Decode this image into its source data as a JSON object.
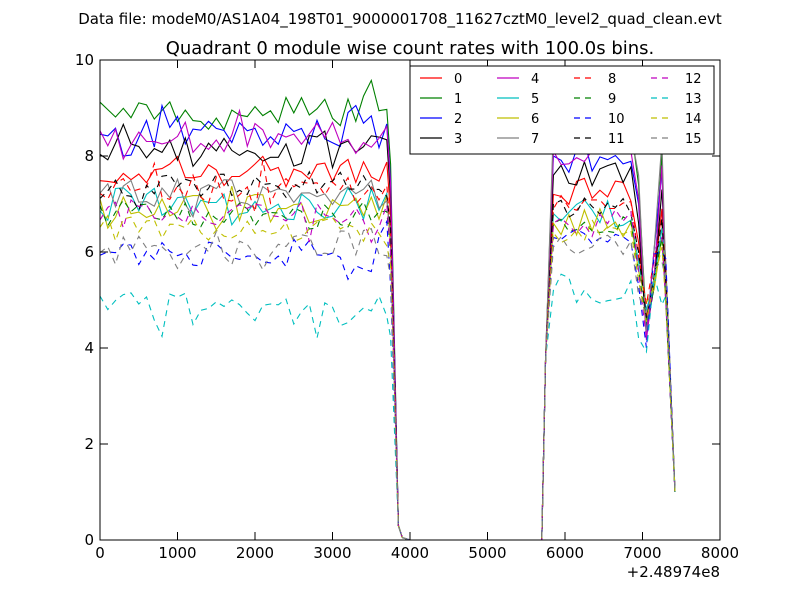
{
  "suptitle": "Data file: modeM0/AS1A04_198T01_9000001708_11627cztM0_level2_quad_clean.evt",
  "chart_data": {
    "type": "line",
    "title": "Quadrant 0 module wise count rates with 100.0s bins.",
    "xlabel": "",
    "ylabel": "",
    "x_offset_label": "+2.48974e8",
    "xlim": [
      0,
      8000
    ],
    "ylim": [
      0,
      10
    ],
    "xticks": [
      0,
      1000,
      2000,
      3000,
      4000,
      5000,
      6000,
      7000,
      8000
    ],
    "yticks": [
      0,
      2,
      4,
      6,
      8,
      10
    ],
    "legend_position": "top-right",
    "legend_columns": 4,
    "bin_size_s": 100,
    "segments": [
      {
        "start": 0,
        "end": 3900,
        "step": 100
      },
      {
        "start": 3900,
        "end": 5700,
        "step": 100,
        "zero": true
      },
      {
        "start": 5700,
        "end": 7420,
        "step": 100
      }
    ],
    "series": [
      {
        "name": "0",
        "color": "#ff0000",
        "dash": "solid",
        "base1": 7.7,
        "base2": 7.2,
        "amp": 0.35,
        "seed": 1
      },
      {
        "name": "1",
        "color": "#008000",
        "dash": "solid",
        "base1": 8.9,
        "base2": 8.4,
        "amp": 0.35,
        "seed": 2
      },
      {
        "name": "2",
        "color": "#0000ff",
        "dash": "solid",
        "base1": 8.5,
        "base2": 8.0,
        "amp": 0.35,
        "seed": 3
      },
      {
        "name": "3",
        "color": "#000000",
        "dash": "solid",
        "base1": 8.1,
        "base2": 7.6,
        "amp": 0.35,
        "seed": 4
      },
      {
        "name": "4",
        "color": "#bf00bf",
        "dash": "solid",
        "base1": 8.4,
        "base2": 8.1,
        "amp": 0.35,
        "seed": 5
      },
      {
        "name": "5",
        "color": "#00bfbf",
        "dash": "solid",
        "base1": 7.0,
        "base2": 6.8,
        "amp": 0.35,
        "seed": 6
      },
      {
        "name": "6",
        "color": "#bfbf00",
        "dash": "solid",
        "base1": 6.9,
        "base2": 6.6,
        "amp": 0.3,
        "seed": 7
      },
      {
        "name": "7",
        "color": "#808080",
        "dash": "solid",
        "base1": 7.2,
        "base2": 8.6,
        "amp": 0.3,
        "seed": 8
      },
      {
        "name": "8",
        "color": "#ff0000",
        "dash": "dashed",
        "base1": 7.3,
        "base2": 6.9,
        "amp": 0.3,
        "seed": 9
      },
      {
        "name": "9",
        "color": "#008000",
        "dash": "dashed",
        "base1": 6.8,
        "base2": 6.6,
        "amp": 0.3,
        "seed": 10
      },
      {
        "name": "10",
        "color": "#0000ff",
        "dash": "dashed",
        "base1": 6.0,
        "base2": 6.3,
        "amp": 0.35,
        "seed": 11
      },
      {
        "name": "11",
        "color": "#000000",
        "dash": "dashed",
        "base1": 7.4,
        "base2": 7.0,
        "amp": 0.3,
        "seed": 12
      },
      {
        "name": "12",
        "color": "#bf00bf",
        "dash": "dashed",
        "base1": 6.8,
        "base2": 6.6,
        "amp": 0.3,
        "seed": 13
      },
      {
        "name": "13",
        "color": "#00bfbf",
        "dash": "dashed",
        "base1": 4.8,
        "base2": 5.2,
        "amp": 0.35,
        "seed": 14
      },
      {
        "name": "14",
        "color": "#bfbf00",
        "dash": "dashed",
        "base1": 6.5,
        "base2": 6.4,
        "amp": 0.3,
        "seed": 15
      },
      {
        "name": "15",
        "color": "#808080",
        "dash": "dashed",
        "base1": 6.2,
        "base2": 6.1,
        "amp": 0.3,
        "seed": 16
      }
    ]
  }
}
